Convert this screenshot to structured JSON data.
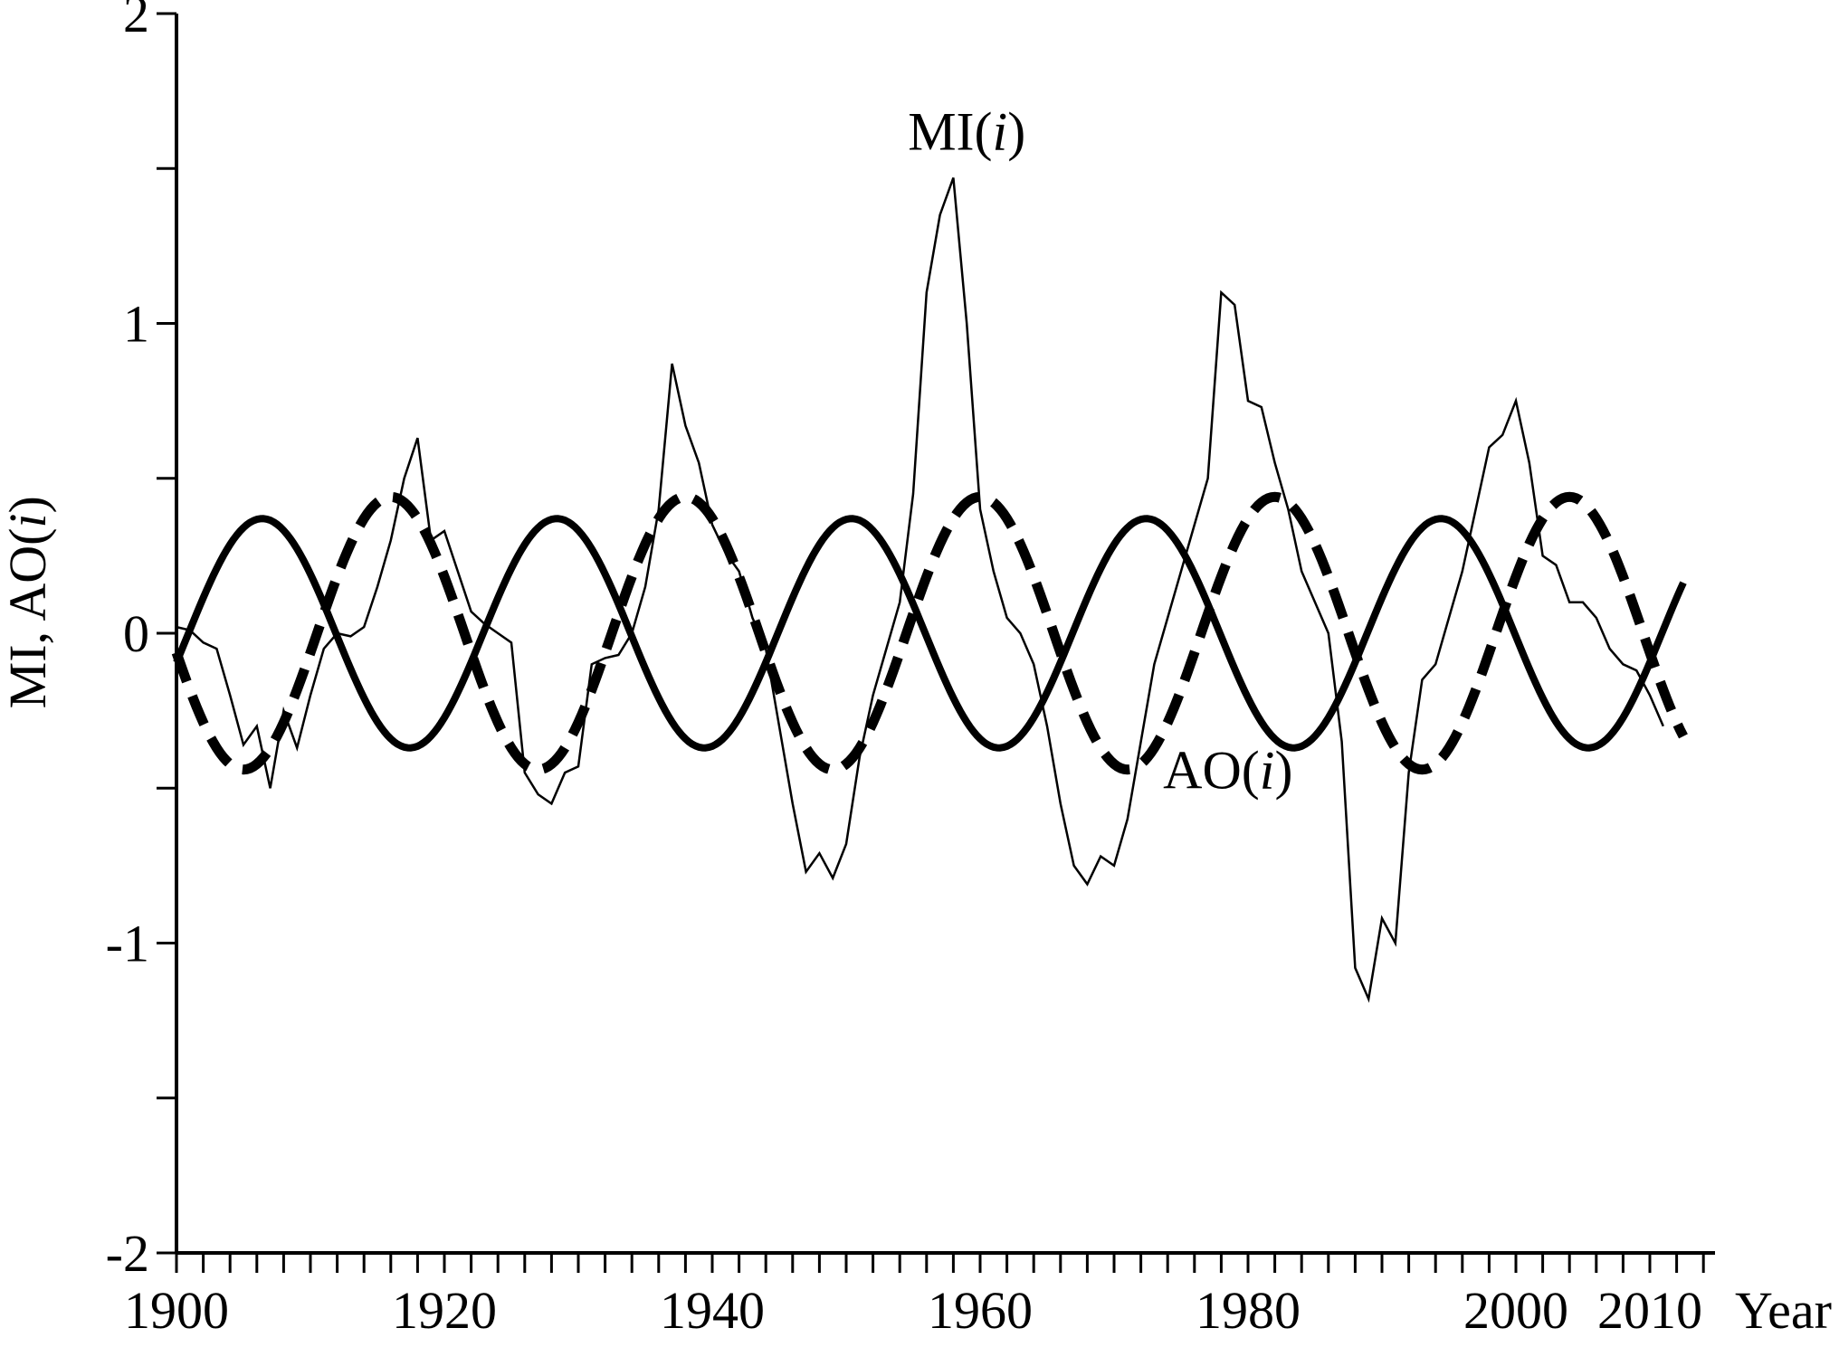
{
  "chart_data": {
    "type": "line",
    "title": "",
    "xlabel": "Year",
    "ylabel": "MI, AO(i)",
    "xlim": [
      1900,
      2015
    ],
    "ylim": [
      -2,
      2
    ],
    "grid": false,
    "legend": "none",
    "x_ticks": [
      1900,
      1920,
      1940,
      1960,
      1980,
      2000,
      2010
    ],
    "x_minor_step": 2,
    "y_ticks": [
      -2,
      -1,
      0,
      1,
      2
    ],
    "y_minor_step": 0.5,
    "annotations": [
      {
        "label_main": "MI",
        "label_arg": "i",
        "x": 1959,
        "y": 1.56
      },
      {
        "label_main": "AO",
        "label_arg": "i",
        "x": 1978.5,
        "y": -0.5
      }
    ],
    "series": [
      {
        "name": "",
        "style": "solid-thick",
        "amplitude": 0.37,
        "period": 22,
        "phase_year": 1900.9,
        "x_range": [
          1900,
          2012.5
        ]
      },
      {
        "name": "",
        "style": "dashed-thick",
        "amplitude": 0.44,
        "period": 22,
        "phase_year": 1910.5,
        "x_range": [
          1900,
          2012.5
        ]
      },
      {
        "name": "MI(i)",
        "style": "solid-thin",
        "x": [
          1900,
          1901,
          1902,
          1903,
          1904,
          1905,
          1906,
          1907,
          1908,
          1909,
          1910,
          1911,
          1912,
          1913,
          1914,
          1915,
          1916,
          1917,
          1918,
          1919,
          1920,
          1921,
          1922,
          1923,
          1924,
          1925,
          1926,
          1927,
          1928,
          1929,
          1930,
          1931,
          1932,
          1933,
          1934,
          1935,
          1936,
          1937,
          1938,
          1939,
          1940,
          1941,
          1942,
          1943,
          1944,
          1945,
          1946,
          1947,
          1948,
          1949,
          1950,
          1951,
          1952,
          1953,
          1954,
          1955,
          1956,
          1957,
          1958,
          1959,
          1960,
          1961,
          1962,
          1963,
          1964,
          1965,
          1966,
          1967,
          1968,
          1969,
          1970,
          1971,
          1972,
          1973,
          1974,
          1975,
          1976,
          1977,
          1978,
          1979,
          1980,
          1981,
          1982,
          1983,
          1984,
          1985,
          1986,
          1987,
          1988,
          1989,
          1990,
          1991,
          1992,
          1993,
          1994,
          1995,
          1996,
          1997,
          1998,
          1999,
          2000,
          2001,
          2002,
          2003,
          2004,
          2005,
          2006,
          2007,
          2008,
          2009,
          2010,
          2011
        ],
        "y": [
          0.02,
          0.01,
          -0.03,
          -0.05,
          -0.2,
          -0.36,
          -0.3,
          -0.5,
          -0.25,
          -0.37,
          -0.2,
          -0.05,
          0.0,
          -0.01,
          0.02,
          0.15,
          0.3,
          0.5,
          0.63,
          0.3,
          0.33,
          0.2,
          0.07,
          0.03,
          0.0,
          -0.03,
          -0.45,
          -0.52,
          -0.55,
          -0.45,
          -0.43,
          -0.1,
          -0.08,
          -0.07,
          0.0,
          0.15,
          0.4,
          0.87,
          0.67,
          0.55,
          0.35,
          0.26,
          0.2,
          0.05,
          -0.05,
          -0.3,
          -0.55,
          -0.77,
          -0.71,
          -0.79,
          -0.68,
          -0.4,
          -0.2,
          -0.05,
          0.1,
          0.45,
          1.1,
          1.35,
          1.47,
          1.0,
          0.4,
          0.2,
          0.05,
          0.0,
          -0.1,
          -0.3,
          -0.55,
          -0.75,
          -0.81,
          -0.72,
          -0.75,
          -0.6,
          -0.35,
          -0.1,
          0.05,
          0.2,
          0.35,
          0.5,
          1.1,
          1.06,
          0.75,
          0.73,
          0.55,
          0.4,
          0.2,
          0.1,
          0.0,
          -0.35,
          -1.08,
          -1.18,
          -0.92,
          -1.0,
          -0.45,
          -0.15,
          -0.1,
          0.05,
          0.2,
          0.4,
          0.6,
          0.64,
          0.75,
          0.55,
          0.25,
          0.22,
          0.1,
          0.1,
          0.05,
          -0.05,
          -0.1,
          -0.12,
          -0.2,
          -0.3
        ]
      }
    ]
  }
}
